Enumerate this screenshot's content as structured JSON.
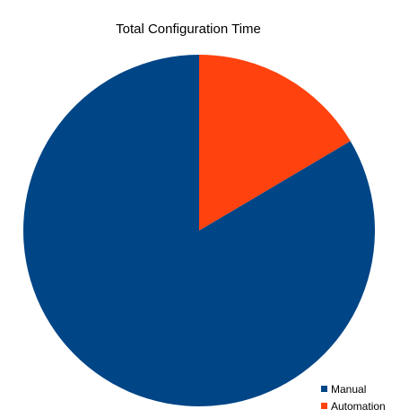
{
  "chart_data": {
    "type": "pie",
    "title": "Total Configuration Time",
    "slices": [
      {
        "label": "Manual",
        "value": 83.5,
        "color": "#004586"
      },
      {
        "label": "Automation",
        "value": 16.5,
        "color": "#ff420e"
      }
    ],
    "start_angle": "12 o'clock",
    "direction": "counter-clockwise",
    "legend_position": "bottom-right"
  }
}
